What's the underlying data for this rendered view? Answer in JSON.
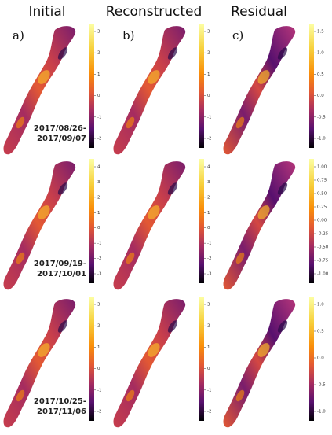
{
  "column_titles": [
    "Initial",
    "Reconstructed",
    "Residual"
  ],
  "panel_labels": [
    "a)",
    "b)",
    "c)"
  ],
  "rows": [
    {
      "date_lines": [
        "2017/08/26-",
        "2017/09/07"
      ],
      "colorbars": [
        {
          "ticks": [
            "3",
            "2",
            "1",
            "0",
            "-1",
            "-2"
          ]
        },
        {
          "ticks": [
            "3",
            "2",
            "1",
            "0",
            "-1",
            "-2"
          ]
        },
        {
          "ticks": [
            "1.5",
            "1.0",
            "0.5",
            "0.0",
            "-0.5",
            "-1.0"
          ]
        }
      ]
    },
    {
      "date_lines": [
        "2017/09/19-",
        "2017/10/01"
      ],
      "colorbars": [
        {
          "ticks": [
            "4",
            "3",
            "2",
            "1",
            "0",
            "-1",
            "-2",
            "-3"
          ]
        },
        {
          "ticks": [
            "4",
            "3",
            "2",
            "1",
            "0",
            "-1",
            "-2",
            "-3"
          ]
        },
        {
          "ticks": [
            "1.00",
            "0.75",
            "0.50",
            "0.25",
            "0.00",
            "-0.25",
            "-0.50",
            "-0.75",
            "-1.00"
          ]
        }
      ]
    },
    {
      "date_lines": [
        "2017/10/25-",
        "2017/11/06"
      ],
      "colorbars": [
        {
          "ticks": [
            "3",
            "2",
            "1",
            "0",
            "-1",
            "-2"
          ]
        },
        {
          "ticks": [
            "3",
            "2",
            "1",
            "0",
            "-1",
            "-2"
          ]
        },
        {
          "ticks": [
            "1.0",
            "0.5",
            "0.0",
            "-0.5",
            "-1.0"
          ]
        }
      ]
    }
  ]
}
